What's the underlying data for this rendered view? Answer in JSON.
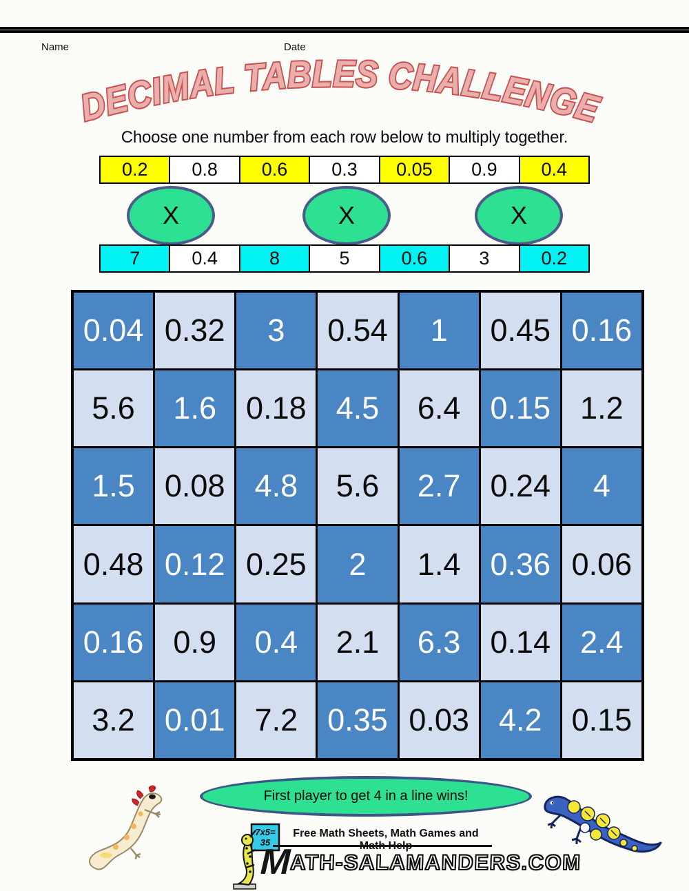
{
  "header": {
    "name_label": "Name",
    "date_label": "Date"
  },
  "title": "DECIMAL TABLES CHALLENGE",
  "instruction": "Choose one number from each row below to multiply together.",
  "multiplier_rows": {
    "operator": "X",
    "top": {
      "values": [
        "0.2",
        "0.8",
        "0.6",
        "0.3",
        "0.05",
        "0.9",
        "0.4"
      ],
      "highlight_color": "#FFFF00"
    },
    "bottom": {
      "values": [
        "7",
        "0.4",
        "8",
        "5",
        "0.6",
        "3",
        "0.2"
      ],
      "highlight_color": "#00F2F2"
    }
  },
  "products_grid": {
    "dark_color": "#4A85C4",
    "light_color": "#D3DFF0",
    "rows": [
      [
        "0.04",
        "0.32",
        "3",
        "0.54",
        "1",
        "0.45",
        "0.16"
      ],
      [
        "5.6",
        "1.6",
        "0.18",
        "4.5",
        "6.4",
        "0.15",
        "1.2"
      ],
      [
        "1.5",
        "0.08",
        "4.8",
        "5.6",
        "2.7",
        "0.24",
        "4"
      ],
      [
        "0.48",
        "0.12",
        "0.25",
        "2",
        "1.4",
        "0.36",
        "0.06"
      ],
      [
        "0.16",
        "0.9",
        "0.4",
        "2.1",
        "6.3",
        "0.14",
        "2.4"
      ],
      [
        "3.2",
        "0.01",
        "7.2",
        "0.35",
        "0.03",
        "4.2",
        "0.15"
      ]
    ]
  },
  "footer": {
    "banner": "First player to get 4 in a line wins!",
    "banner_color": "#2EE192",
    "tagline": "Free Math Sheets, Math Games and Math Help",
    "wordmark_initial": "M",
    "wordmark_rest": "ATH-SALAMANDERS.COM",
    "mascot_sign_line1": "7x5=",
    "mascot_sign_line2": "35"
  },
  "title_colors": {
    "fill": "#E9AFAC",
    "outline": "#C9504E"
  }
}
